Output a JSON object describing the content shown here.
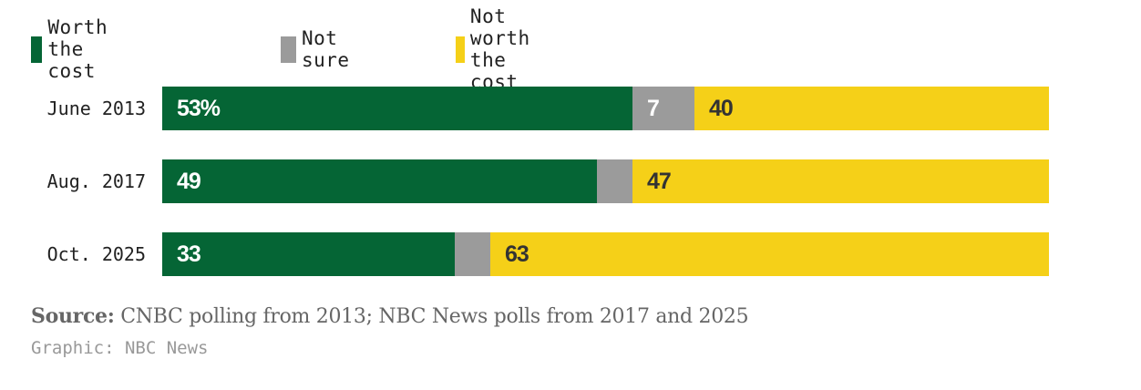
{
  "chart_data": {
    "type": "bar",
    "orientation": "horizontal",
    "stacked": true,
    "percent_scale": true,
    "categories": [
      "June 2013",
      "Aug. 2017",
      "Oct. 2025"
    ],
    "series": [
      {
        "name": "Worth the cost",
        "color": "#056535",
        "values": [
          53,
          49,
          33
        ],
        "labels": [
          "53%",
          "49",
          "33"
        ],
        "label_color": "#ffffff"
      },
      {
        "name": "Not sure",
        "color": "#9b9b9b",
        "values": [
          7,
          4,
          4
        ],
        "labels": [
          "7",
          "",
          ""
        ],
        "label_color": "#ffffff"
      },
      {
        "name": "Not worth the cost",
        "color": "#f5d018",
        "values": [
          40,
          47,
          63
        ],
        "labels": [
          "40",
          "47",
          "63"
        ],
        "label_color": "#333333"
      }
    ],
    "xlim": [
      0,
      100
    ],
    "legend_position": "top-left",
    "grid": false
  },
  "source": {
    "label": "Source:",
    "text": " CNBC polling from 2013; NBC News polls from 2017 and 2025"
  },
  "credit": "Graphic: NBC News"
}
